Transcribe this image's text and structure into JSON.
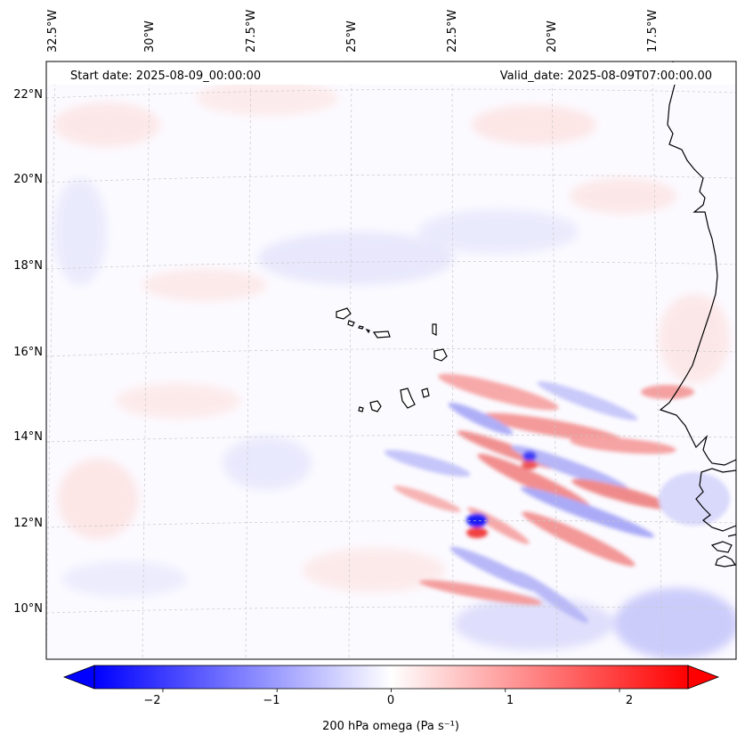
{
  "map": {
    "start_date_label": "Start date: 2025-08-09_00:00:00",
    "valid_date_label": "Valid_date: 2025-08-09T07:00:00.00",
    "longitude_labels": [
      "32.5°W",
      "30°W",
      "27.5°W",
      "25°W",
      "22.5°W",
      "20°W",
      "17.5°W"
    ],
    "latitude_labels": [
      "22°N",
      "20°N",
      "18°N",
      "16°N",
      "14°N",
      "12°N",
      "10°N"
    ],
    "field": "200 hPa omega",
    "coastline_color": "#000000",
    "grid_color": "#c8c8c8"
  },
  "colorbar": {
    "label": "200 hPa omega (Pa s⁻¹)",
    "ticks": [
      "−2",
      "−1",
      "0",
      "1",
      "2"
    ],
    "tick_values": [
      -2,
      -1,
      0,
      1,
      2
    ],
    "range": [
      -2.6,
      2.6
    ],
    "extend": "both",
    "colormap": "bwr",
    "low_color": "#0000ff",
    "mid_color": "#ffffff",
    "high_color": "#ff0000"
  }
}
